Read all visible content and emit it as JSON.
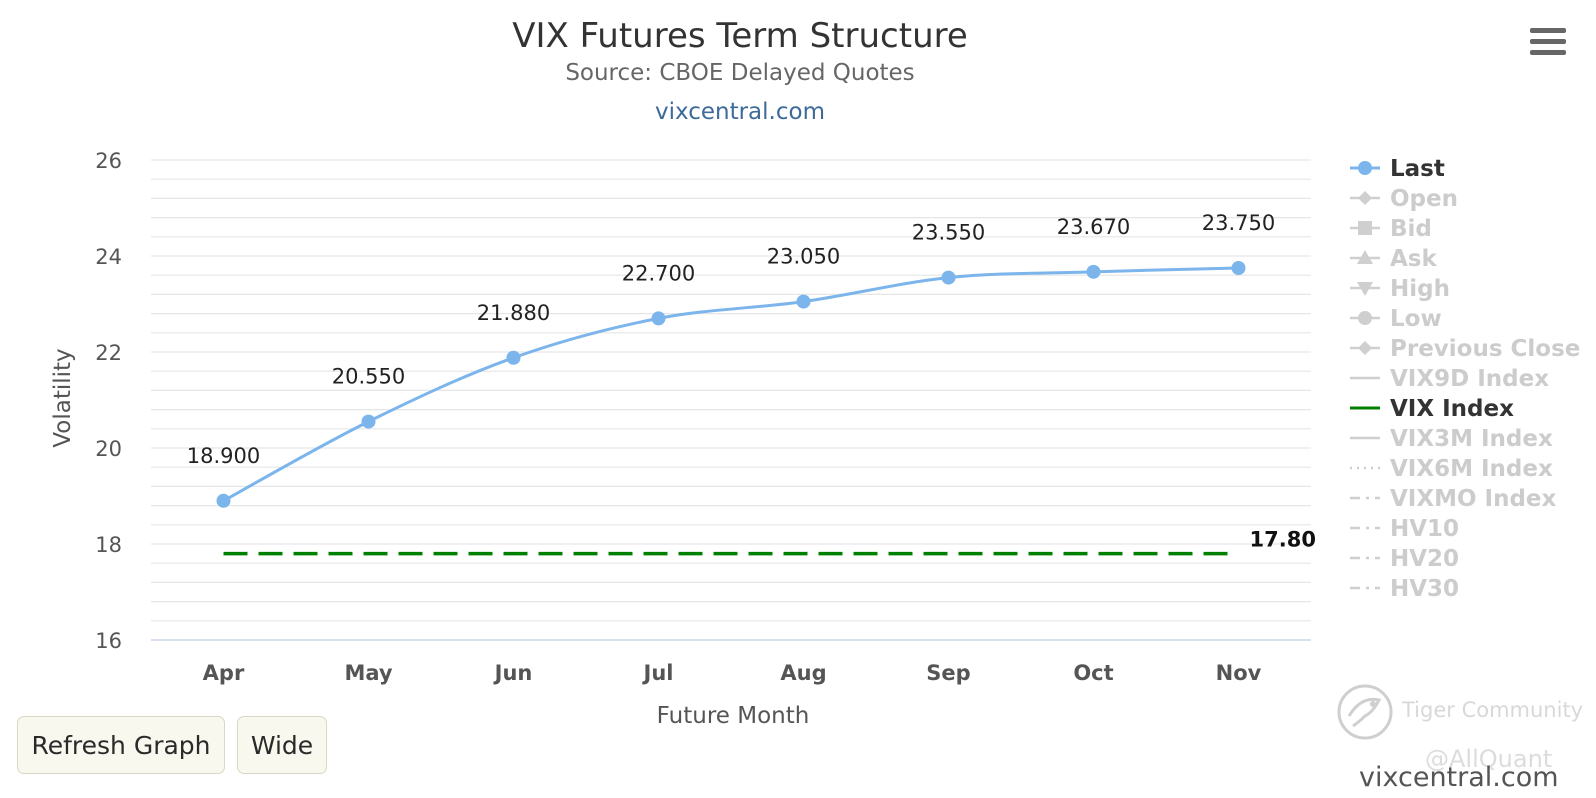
{
  "toolbar": {
    "refresh_label": "Refresh Graph",
    "wide_label": "Wide",
    "menu_icon": "hamburger-menu-icon"
  },
  "watermark": {
    "brand": "Tiger Community",
    "handle": "@AllQuant",
    "site": "vixcentral.com"
  },
  "colors": {
    "last": "#7cb5ec",
    "vix": "#008000",
    "legend_inactive": "#cccccc",
    "legend_active": "#333333"
  },
  "chart_data": {
    "type": "line",
    "title": "VIX Futures Term Structure",
    "subtitle": "Source: CBOE Delayed Quotes",
    "credit": "vixcentral.com",
    "xlabel": "Future Month",
    "ylabel": "Volatility",
    "categories": [
      "Apr",
      "May",
      "Jun",
      "Jul",
      "Aug",
      "Sep",
      "Oct",
      "Nov"
    ],
    "ylim": [
      16,
      26
    ],
    "yticks": [
      16,
      18,
      20,
      22,
      24,
      26
    ],
    "grid": true,
    "legend_position": "right",
    "series": [
      {
        "name": "Last",
        "style": "line-marker",
        "active": true,
        "values": [
          18.9,
          20.55,
          21.88,
          22.7,
          23.05,
          23.55,
          23.67,
          23.75
        ],
        "labels": [
          "18.900",
          "20.550",
          "21.880",
          "22.700",
          "23.050",
          "23.550",
          "23.670",
          "23.750"
        ]
      },
      {
        "name": "VIX Index",
        "style": "dashed",
        "active": true,
        "value": 17.8,
        "end_label": "17.80"
      }
    ],
    "legend": [
      {
        "name": "Last",
        "symbol": "circle",
        "active": true
      },
      {
        "name": "Open",
        "symbol": "diamond",
        "active": false
      },
      {
        "name": "Bid",
        "symbol": "square",
        "active": false
      },
      {
        "name": "Ask",
        "symbol": "triangle",
        "active": false
      },
      {
        "name": "High",
        "symbol": "triangle-down",
        "active": false
      },
      {
        "name": "Low",
        "symbol": "circle",
        "active": false
      },
      {
        "name": "Previous Close",
        "symbol": "diamond",
        "active": false
      },
      {
        "name": "VIX9D Index",
        "symbol": "line",
        "active": false
      },
      {
        "name": "VIX Index",
        "symbol": "line-green",
        "active": true
      },
      {
        "name": "VIX3M Index",
        "symbol": "line",
        "active": false
      },
      {
        "name": "VIX6M Index",
        "symbol": "dotted",
        "active": false
      },
      {
        "name": "VIXMO Index",
        "symbol": "dashdot",
        "active": false
      },
      {
        "name": "HV10",
        "symbol": "dashdot",
        "active": false
      },
      {
        "name": "HV20",
        "symbol": "dashdot",
        "active": false
      },
      {
        "name": "HV30",
        "symbol": "dashdot",
        "active": false
      }
    ]
  }
}
